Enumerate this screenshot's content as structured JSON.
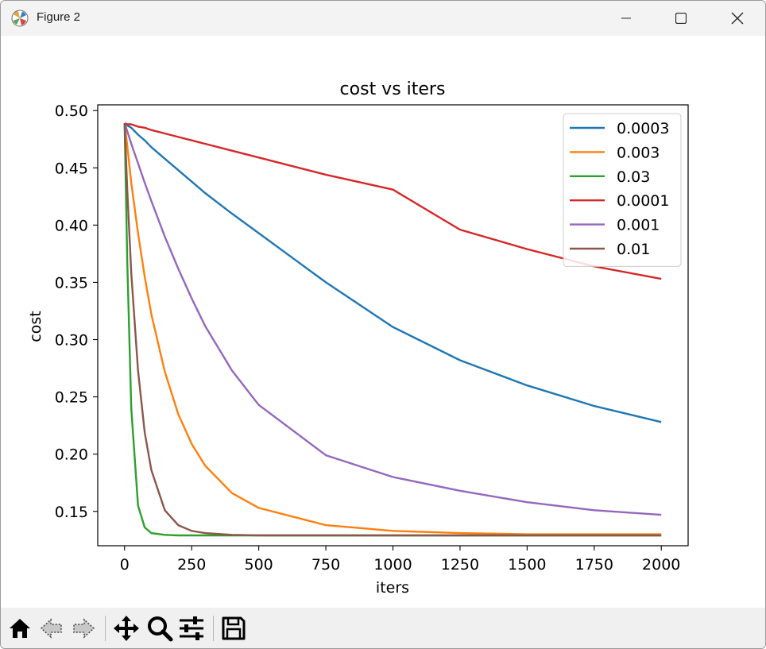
{
  "window": {
    "title": "Figure 2",
    "icons": [
      "matplotlib-icon",
      "minimize-icon",
      "maximize-icon",
      "close-icon"
    ]
  },
  "toolbar": {
    "tools": [
      "home-icon",
      "back-arrow-icon",
      "forward-arrow-icon",
      "pan-icon",
      "zoom-icon",
      "configure-subplots-icon",
      "save-icon"
    ]
  },
  "chart_data": {
    "type": "line",
    "title": "cost vs iters",
    "xlabel": "iters",
    "ylabel": "cost",
    "xlim": [
      -100,
      2100
    ],
    "ylim": [
      0.12,
      0.505
    ],
    "xticks": [
      0,
      250,
      500,
      750,
      1000,
      1250,
      1500,
      1750,
      2000
    ],
    "yticks": [
      0.15,
      0.2,
      0.25,
      0.3,
      0.35,
      0.4,
      0.45,
      0.5
    ],
    "ytick_labels": [
      "0.15",
      "0.20",
      "0.25",
      "0.30",
      "0.35",
      "0.40",
      "0.45",
      "0.50"
    ],
    "grid": false,
    "legend": "top-right",
    "x": [
      0,
      10,
      25,
      50,
      75,
      100,
      150,
      200,
      250,
      300,
      400,
      500,
      750,
      1000,
      1250,
      1500,
      1750,
      2000
    ],
    "series": [
      {
        "name": "0.0003",
        "color": "#1f77b4",
        "values": [
          0.489,
          0.487,
          0.485,
          0.479,
          0.474,
          0.468,
          0.458,
          0.448,
          0.438,
          0.428,
          0.41,
          0.393,
          0.35,
          0.311,
          0.282,
          0.26,
          0.242,
          0.228
        ]
      },
      {
        "name": "0.003",
        "color": "#ff7f0e",
        "values": [
          0.489,
          0.469,
          0.437,
          0.393,
          0.355,
          0.322,
          0.272,
          0.235,
          0.209,
          0.19,
          0.166,
          0.153,
          0.138,
          0.133,
          0.131,
          0.13,
          0.13,
          0.13
        ]
      },
      {
        "name": "0.03",
        "color": "#2ca02c",
        "values": [
          0.489,
          0.367,
          0.24,
          0.155,
          0.136,
          0.131,
          0.1295,
          0.129,
          0.129,
          0.129,
          0.129,
          0.129,
          0.129,
          0.129,
          0.129,
          0.129,
          0.129,
          0.129
        ]
      },
      {
        "name": "0.0001",
        "color": "#d62728",
        "values": [
          0.489,
          0.488,
          0.488,
          0.486,
          0.485,
          0.483,
          0.48,
          0.477,
          0.474,
          0.471,
          0.465,
          0.459,
          0.444,
          0.431,
          0.396,
          0.379,
          0.364,
          0.353
        ]
      },
      {
        "name": "0.001",
        "color": "#9467bd",
        "values": [
          0.489,
          0.482,
          0.471,
          0.454,
          0.437,
          0.421,
          0.39,
          0.362,
          0.336,
          0.312,
          0.273,
          0.243,
          0.199,
          0.18,
          0.168,
          0.158,
          0.151,
          0.147
        ]
      },
      {
        "name": "0.01",
        "color": "#8c564b",
        "values": [
          0.489,
          0.43,
          0.358,
          0.273,
          0.219,
          0.186,
          0.151,
          0.138,
          0.133,
          0.131,
          0.1295,
          0.129,
          0.129,
          0.129,
          0.129,
          0.129,
          0.129,
          0.129
        ]
      }
    ]
  }
}
